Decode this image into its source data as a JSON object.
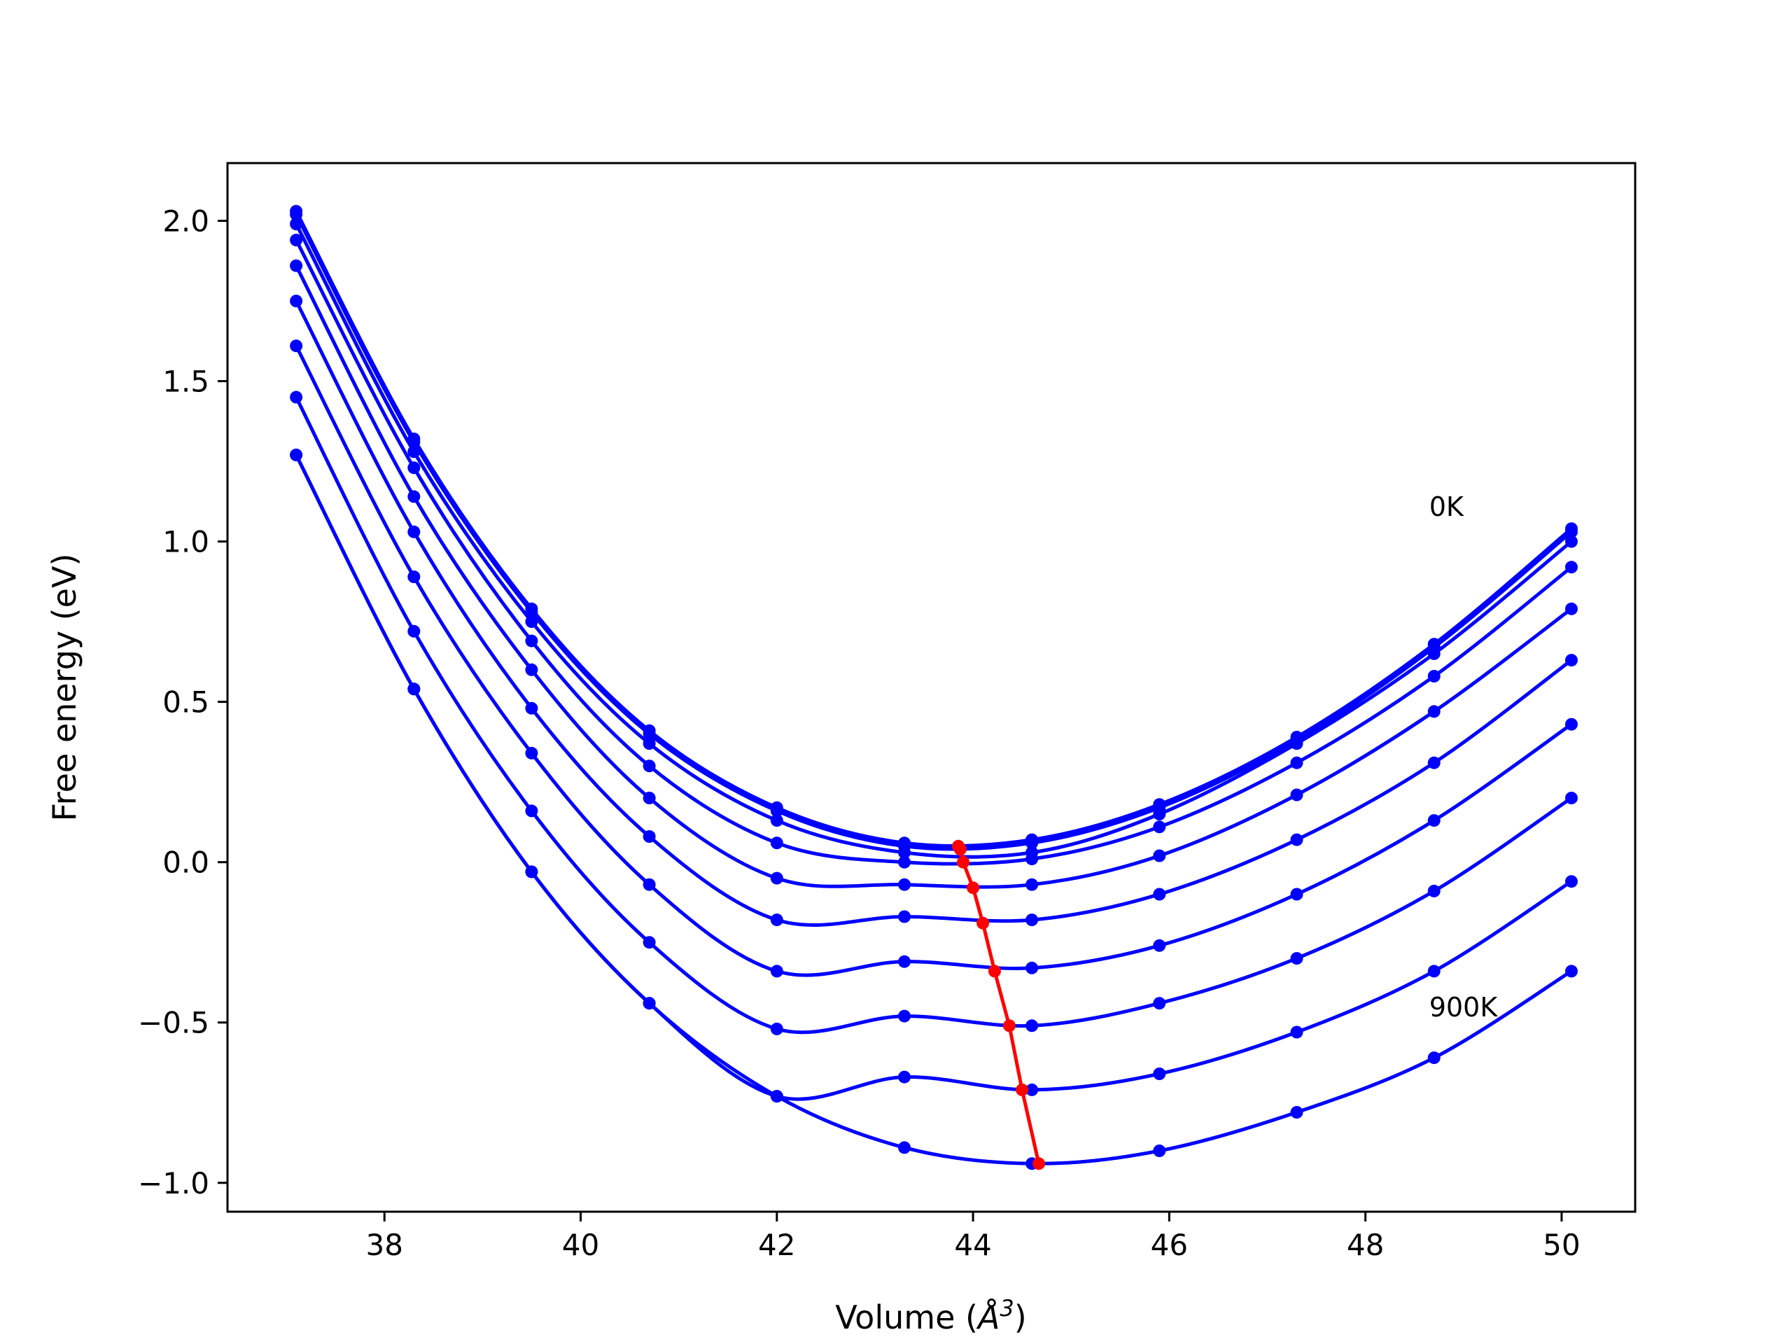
{
  "chart_data": {
    "type": "line",
    "xlabel_prefix": "Volume (",
    "xlabel_unit": "Å",
    "xlabel_sup": "3",
    "xlabel_suffix": ")",
    "ylabel": "Free energy (eV)",
    "xlim": [
      36.4,
      50.75
    ],
    "ylim": [
      -1.09,
      2.18
    ],
    "xticks": [
      {
        "value": 38,
        "label": "38"
      },
      {
        "value": 40,
        "label": "40"
      },
      {
        "value": 42,
        "label": "42"
      },
      {
        "value": 44,
        "label": "44"
      },
      {
        "value": 46,
        "label": "46"
      },
      {
        "value": 48,
        "label": "48"
      },
      {
        "value": 50,
        "label": "50"
      }
    ],
    "yticks": [
      {
        "value": -1.0,
        "label": "−1.0"
      },
      {
        "value": -0.5,
        "label": "−0.5"
      },
      {
        "value": 0.0,
        "label": "0.0"
      },
      {
        "value": 0.5,
        "label": "0.5"
      },
      {
        "value": 1.0,
        "label": "1.0"
      },
      {
        "value": 1.5,
        "label": "1.5"
      },
      {
        "value": 2.0,
        "label": "2.0"
      }
    ],
    "grid": false,
    "colors": {
      "series": "#0000ff",
      "minimum_line": "#ff0000"
    },
    "x": [
      37.1,
      38.3,
      39.5,
      40.7,
      42.0,
      43.3,
      44.6,
      45.9,
      47.3,
      48.7,
      50.1
    ],
    "series": [
      {
        "values": [
          2.03,
          1.32,
          0.79,
          0.41,
          0.17,
          0.06,
          0.07,
          0.18,
          0.39,
          0.68,
          1.04
        ]
      },
      {
        "values": [
          2.02,
          1.31,
          0.78,
          0.4,
          0.16,
          0.05,
          0.06,
          0.17,
          0.38,
          0.67,
          1.03
        ]
      },
      {
        "values": [
          1.99,
          1.28,
          0.75,
          0.37,
          0.13,
          0.03,
          0.03,
          0.15,
          0.37,
          0.65,
          1.0
        ]
      },
      {
        "values": [
          1.94,
          1.23,
          0.69,
          0.3,
          0.06,
          0.0,
          0.01,
          0.11,
          0.31,
          0.58,
          0.92
        ]
      },
      {
        "values": [
          1.86,
          1.14,
          0.6,
          0.2,
          -0.05,
          -0.07,
          -0.07,
          0.02,
          0.21,
          0.47,
          0.79
        ]
      },
      {
        "values": [
          1.75,
          1.03,
          0.48,
          0.08,
          -0.18,
          -0.17,
          -0.18,
          -0.1,
          0.07,
          0.31,
          0.63
        ]
      },
      {
        "values": [
          1.61,
          0.89,
          0.34,
          -0.07,
          -0.34,
          -0.31,
          -0.33,
          -0.26,
          -0.1,
          0.13,
          0.43
        ]
      },
      {
        "values": [
          1.45,
          0.72,
          0.16,
          -0.25,
          -0.52,
          -0.48,
          -0.51,
          -0.44,
          -0.3,
          -0.09,
          0.2
        ]
      },
      {
        "values": [
          1.27,
          0.54,
          -0.03,
          -0.44,
          -0.73,
          -0.67,
          -0.71,
          -0.66,
          -0.53,
          -0.34,
          -0.06
        ]
      },
      {
        "values": [
          1.27,
          0.54,
          -0.03,
          -0.44,
          -0.73,
          -0.89,
          -0.94,
          -0.9,
          -0.78,
          -0.61,
          -0.34
        ]
      }
    ],
    "minimum_path": {
      "x": [
        43.85,
        43.87,
        43.9,
        44.0,
        44.1,
        44.22,
        44.37,
        44.5,
        44.67
      ],
      "y": [
        0.05,
        0.04,
        0.0,
        -0.08,
        -0.19,
        -0.34,
        -0.51,
        -0.71,
        -0.94
      ]
    },
    "annotations": [
      {
        "text": "0K",
        "x": 48.65,
        "y": 1.11
      },
      {
        "text": "900K",
        "x": 48.65,
        "y": -0.45
      }
    ]
  }
}
